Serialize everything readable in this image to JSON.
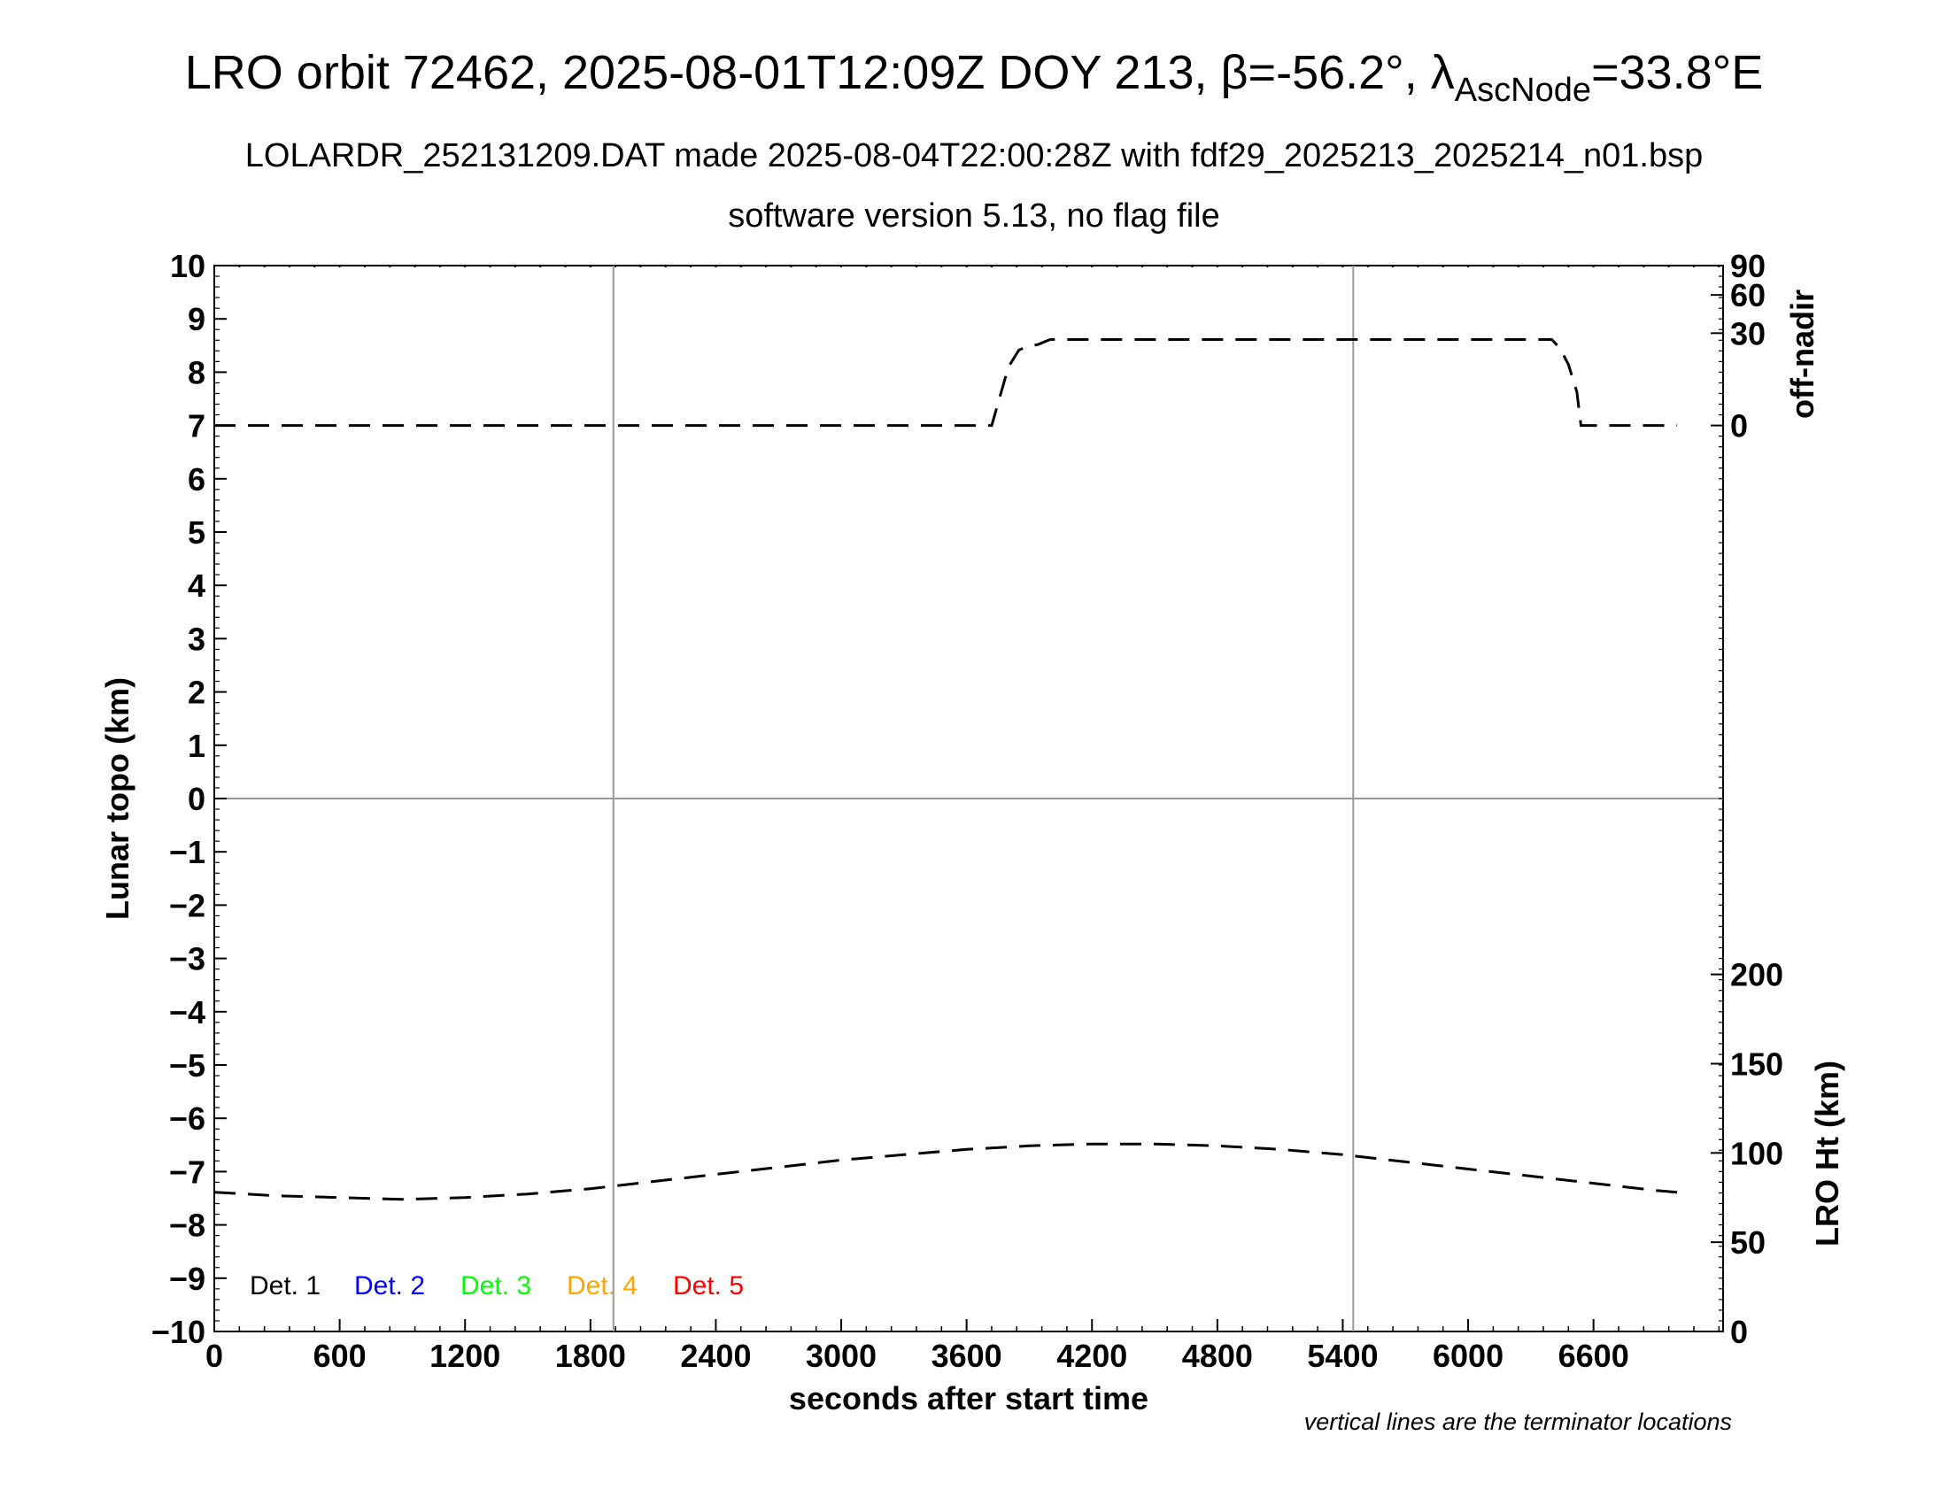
{
  "chart_data": {
    "type": "line",
    "title_main": "LRO orbit 72462, 2025-08-01T12:09Z DOY 213, ",
    "title_beta": "β=-56.2°, ",
    "title_lambda": "λ",
    "title_sub": "AscNode",
    "title_end": "=33.8°E",
    "subtitle": "LOLARDR_252131209.DAT made 2025-08-04T22:00:28Z with fdf29_2025213_2025214_n01.bsp",
    "subtitle2": "software version 5.13, no flag file",
    "xlabel": "seconds after start time",
    "ylabel_left": "Lunar topo (km)",
    "ylabel_right_top": "off-nadir",
    "ylabel_right_bottom": "LRO Ht (km)",
    "footnote": "vertical lines are the terminator locations",
    "xlim": [
      0,
      7200
    ],
    "ylim": [
      -10,
      10
    ],
    "xticks": [
      "0",
      "600",
      "1200",
      "1800",
      "2400",
      "3000",
      "3600",
      "4200",
      "4800",
      "5400",
      "6000",
      "6600"
    ],
    "xtick_values": [
      0,
      600,
      1200,
      1800,
      2400,
      3000,
      3600,
      4200,
      4800,
      5400,
      6000,
      6600
    ],
    "yticks": [
      "10",
      "9",
      "8",
      "7",
      "6",
      "5",
      "4",
      "3",
      "2",
      "1",
      "0",
      "−1",
      "−2",
      "−3",
      "−4",
      "−5",
      "−6",
      "−7",
      "−8",
      "−9",
      "−10"
    ],
    "ytick_values": [
      10,
      9,
      8,
      7,
      6,
      5,
      4,
      3,
      2,
      1,
      0,
      -1,
      -2,
      -3,
      -4,
      -5,
      -6,
      -7,
      -8,
      -9,
      -10
    ],
    "right_top_ticks": [
      "90",
      "60",
      "30",
      "0"
    ],
    "right_top_tick_values": [
      90,
      60,
      30,
      0
    ],
    "right_bottom_ticks": [
      "200",
      "150",
      "100",
      "50",
      "0"
    ],
    "right_bottom_tick_values": [
      200,
      150,
      100,
      50,
      0
    ],
    "grid": true,
    "terminator_x": [
      1910,
      5450
    ],
    "legend": [
      {
        "label": "Det. 1",
        "color": "#000000"
      },
      {
        "label": "Det. 2",
        "color": "#0000ff"
      },
      {
        "label": "Det. 3",
        "color": "#00ff00"
      },
      {
        "label": "Det. 4",
        "color": "#ffa500"
      },
      {
        "label": "Det. 5",
        "color": "#ff0000"
      }
    ],
    "legend_position": "bottom-left",
    "series": [
      {
        "axis": "off-nadir (deg)",
        "x": [
          0,
          3720,
          3760,
          3800,
          3850,
          3890,
          3940,
          4000,
          4200,
          5000,
          6000,
          6400,
          6440,
          6480,
          6520,
          6540,
          7000
        ],
        "values": [
          0,
          0,
          3,
          12,
          20,
          22,
          23,
          26,
          26,
          26,
          26,
          26,
          21,
          13,
          4,
          0,
          0
        ]
      },
      {
        "axis": "LRO Ht (km)",
        "x": [
          0,
          300,
          600,
          900,
          1200,
          1500,
          1800,
          2100,
          2400,
          2700,
          3000,
          3300,
          3600,
          3900,
          4200,
          4500,
          4800,
          5100,
          5400,
          5700,
          6000,
          6300,
          6600,
          6900,
          7000
        ],
        "values": [
          78,
          76,
          75,
          74,
          75,
          77,
          80,
          84,
          88,
          92,
          96,
          99,
          102,
          104,
          105,
          105,
          104,
          102,
          99,
          95,
          91,
          87,
          83,
          79,
          78
        ]
      }
    ]
  }
}
